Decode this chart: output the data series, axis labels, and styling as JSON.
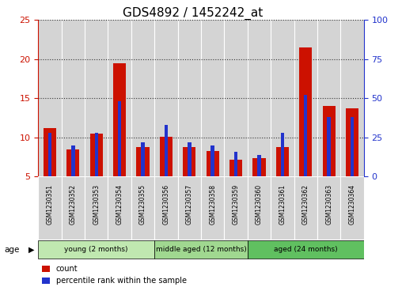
{
  "title": "GDS4892 / 1452242_at",
  "samples": [
    "GSM1230351",
    "GSM1230352",
    "GSM1230353",
    "GSM1230354",
    "GSM1230355",
    "GSM1230356",
    "GSM1230357",
    "GSM1230358",
    "GSM1230359",
    "GSM1230360",
    "GSM1230361",
    "GSM1230362",
    "GSM1230363",
    "GSM1230364"
  ],
  "counts": [
    11.2,
    8.5,
    10.5,
    19.5,
    8.8,
    10.1,
    8.8,
    8.3,
    7.1,
    7.3,
    8.8,
    21.5,
    14.0,
    13.7
  ],
  "percentile_ranks": [
    28,
    20,
    28,
    48,
    22,
    33,
    22,
    20,
    16,
    14,
    28,
    52,
    38,
    38
  ],
  "ylim_left": [
    5,
    25
  ],
  "ylim_right": [
    0,
    100
  ],
  "yticks_left": [
    5,
    10,
    15,
    20,
    25
  ],
  "yticks_right": [
    0,
    25,
    50,
    75,
    100
  ],
  "bar_color": "#cc1100",
  "percentile_color": "#2233cc",
  "bar_width": 0.55,
  "pct_bar_width": 0.15,
  "groups": [
    {
      "label": "young (2 months)",
      "start": 0,
      "end": 5
    },
    {
      "label": "middle aged (12 months)",
      "start": 5,
      "end": 9
    },
    {
      "label": "aged (24 months)",
      "start": 9,
      "end": 14
    }
  ],
  "group_colors": [
    "#c0e8b0",
    "#a0d890",
    "#60c060"
  ],
  "legend_count_label": "count",
  "legend_percentile_label": "percentile rank within the sample",
  "title_fontsize": 11,
  "left_tick_color": "#cc1100",
  "right_tick_color": "#2233cc",
  "grid_linestyle": "dotted",
  "grid_color": "#333333"
}
